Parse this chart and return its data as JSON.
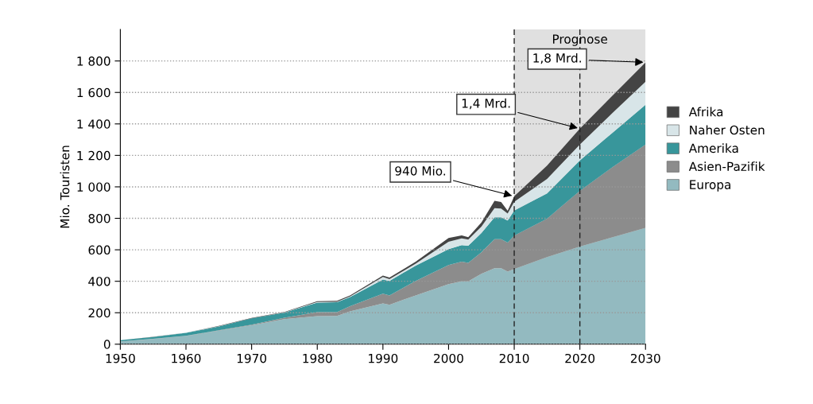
{
  "chart_data": {
    "type": "area",
    "stacked": true,
    "ylabel": "Mio. Touristen",
    "x": [
      1950,
      1955,
      1960,
      1965,
      1970,
      1975,
      1980,
      1983,
      1985,
      1990,
      1991,
      1995,
      2000,
      2002,
      2003,
      2005,
      2007,
      2008,
      2009,
      2010,
      2015,
      2020,
      2025,
      2030
    ],
    "series": [
      {
        "name": "Europa",
        "color": "#93bac0",
        "values": [
          17,
          33,
          52,
          86,
          120,
          160,
          178,
          180,
          209,
          259,
          251,
          310,
          382,
          399,
          399,
          448,
          483,
          483,
          461,
          478,
          554,
          621,
          680,
          739
        ]
      },
      {
        "name": "Asien-Pazifik",
        "color": "#8c8c8c",
        "values": [
          1,
          1,
          1,
          3,
          4,
          8,
          26,
          24,
          33,
          62,
          59,
          92,
          121,
          126,
          118,
          136,
          185,
          185,
          185,
          212,
          244,
          354,
          446,
          530
        ]
      },
      {
        "name": "Amerika",
        "color": "#38969b",
        "values": [
          7,
          12,
          19,
          24,
          40,
          33,
          61,
          63,
          58,
          90,
          92,
          98,
          101,
          105,
          109,
          122,
          139,
          139,
          140,
          160,
          160,
          193,
          219,
          253
        ]
      },
      {
        "name": "Naher Osten",
        "color": "#d8e5e8",
        "values": [
          0,
          0,
          1,
          1,
          1,
          2,
          3,
          3,
          3,
          17,
          12,
          12,
          47,
          42,
          39,
          41,
          58,
          55,
          45,
          55,
          92,
          101,
          126,
          146
        ]
      },
      {
        "name": "Afrika",
        "color": "#444444",
        "values": [
          0,
          1,
          1,
          2,
          2,
          2,
          5,
          6,
          7,
          8,
          9,
          13,
          24,
          20,
          15,
          26,
          46,
          42,
          17,
          35,
          85,
          101,
          110,
          123
        ]
      }
    ],
    "xlim": [
      1950,
      2030
    ],
    "xticks": [
      1950,
      1960,
      1970,
      1980,
      1990,
      2000,
      2010,
      2020,
      2030
    ],
    "ylim": [
      0,
      2000
    ],
    "yticks": [
      0,
      200,
      400,
      600,
      800,
      {
        "value": 1000,
        "label": "1 000"
      },
      {
        "value": 1200,
        "label": "1 200"
      },
      {
        "value": 1400,
        "label": "1 400"
      },
      {
        "value": 1600,
        "label": "1 600"
      },
      {
        "value": 1800,
        "label": "1 800"
      }
    ],
    "grid": "y",
    "legend": "right",
    "bands": [
      {
        "axis": "x",
        "from": 2010,
        "to": 2030,
        "label": "Prognose",
        "color": "#e0e0e0"
      }
    ],
    "ref_lines": [
      {
        "axis": "x",
        "value": 2010,
        "line_style": "dashed"
      },
      {
        "axis": "x",
        "value": 2020,
        "line_style": "dashed"
      }
    ],
    "annotations": [
      {
        "text": "940 Mio.",
        "x": 2010,
        "y": 940
      },
      {
        "text": "1,4 Mrd.",
        "x": 2020,
        "y": 1370
      },
      {
        "text": "1,8 Mrd.",
        "x": 2030,
        "y": 1791
      }
    ]
  }
}
